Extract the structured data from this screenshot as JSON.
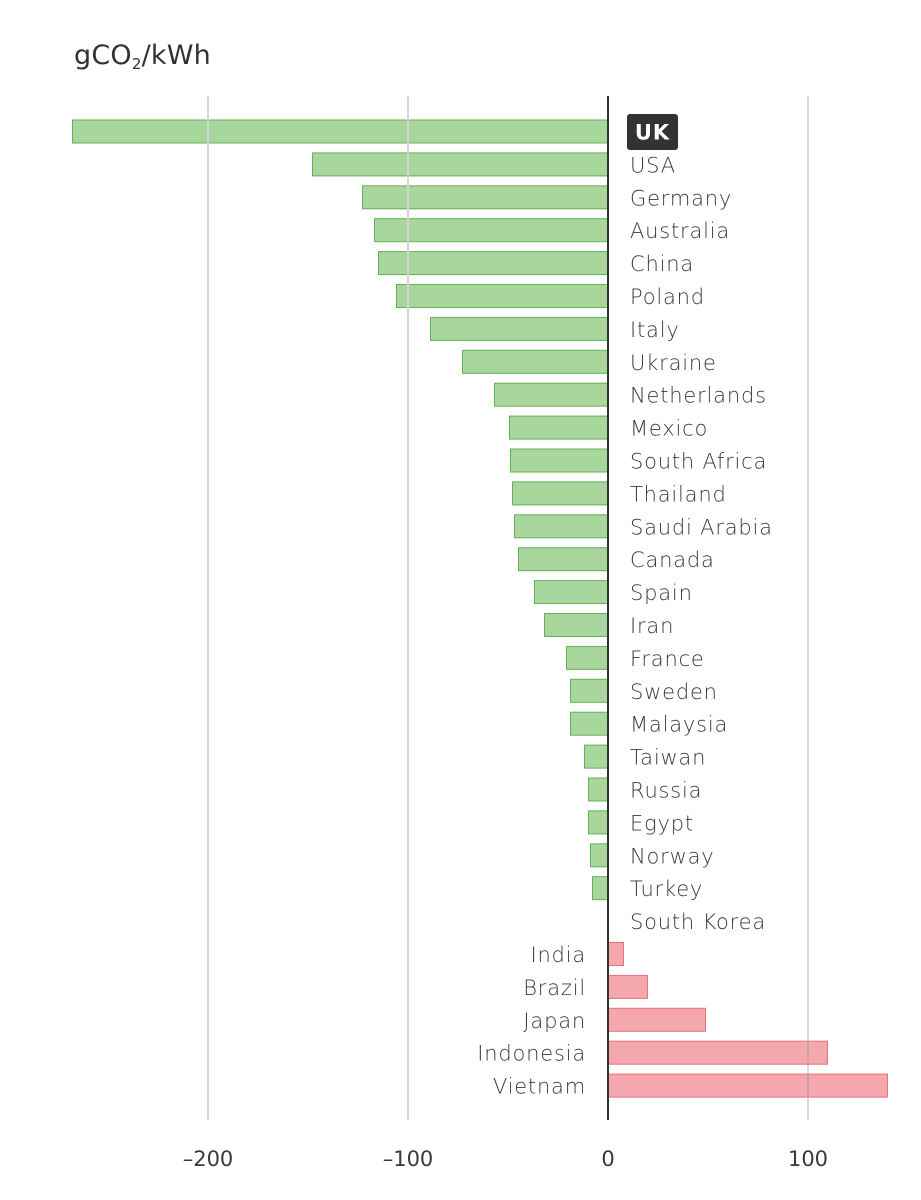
{
  "chart_data": {
    "type": "bar",
    "orientation": "horizontal",
    "title": "",
    "ylabel": "",
    "xlabel": "",
    "unit_label": {
      "prefix": "gCO",
      "subscript": "2",
      "suffix": "/kWh"
    },
    "xlim": [
      -270,
      140
    ],
    "xticks": [
      -200,
      -100,
      0,
      100
    ],
    "xtick_labels": [
      "–200",
      "–100",
      "0",
      "100"
    ],
    "grid": true,
    "highlight": "UK",
    "colors": {
      "negative_fill": "#a8d69c",
      "negative_stroke": "#62b257",
      "positive_fill": "#f4a8ae",
      "positive_stroke": "#e6707b",
      "highlight_bg": "#333333",
      "axis": "#333333",
      "grid": "#d4d4d4"
    },
    "categories": [
      "UK",
      "USA",
      "Germany",
      "Australia",
      "China",
      "Poland",
      "Italy",
      "Ukraine",
      "Netherlands",
      "Mexico",
      "South Africa",
      "Thailand",
      "Saudi Arabia",
      "Canada",
      "Spain",
      "Iran",
      "France",
      "Sweden",
      "Malaysia",
      "Taiwan",
      "Russia",
      "Egypt",
      "Norway",
      "Turkey",
      "South Korea",
      "India",
      "Brazil",
      "Japan",
      "Indonesia",
      "Vietnam"
    ],
    "values": [
      -268,
      -148,
      -123,
      -117,
      -115,
      -106,
      -89,
      -73,
      -57,
      -49.5,
      -49,
      -48,
      -47,
      -45,
      -37,
      -32,
      -21,
      -19,
      -19,
      -12,
      -10,
      -10,
      -9,
      -8,
      0,
      8,
      20,
      49,
      110,
      140
    ]
  }
}
